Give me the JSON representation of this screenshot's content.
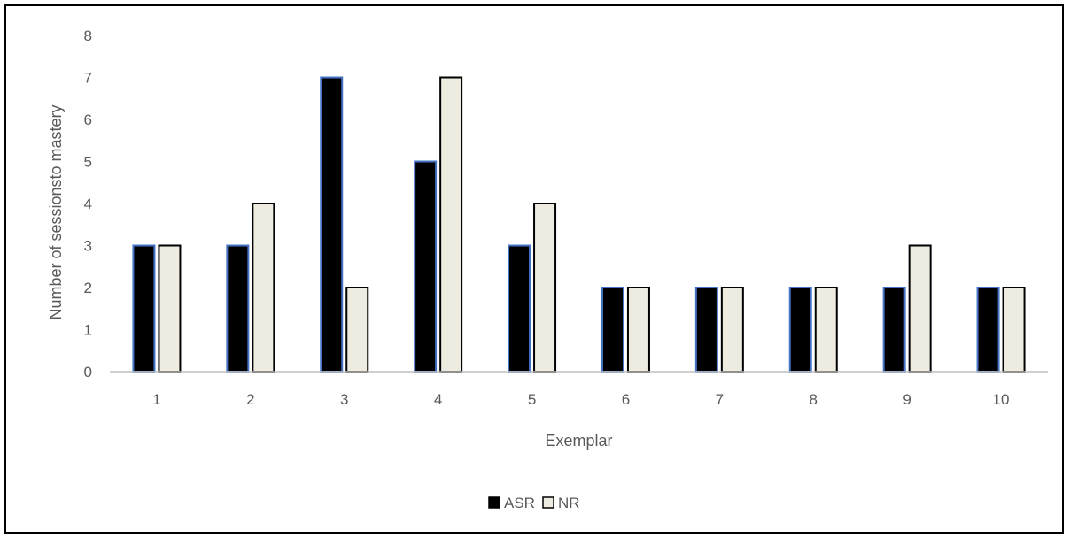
{
  "chart_data": {
    "type": "bar",
    "title": "",
    "xlabel": "Exemplar",
    "ylabel": "Number  of sessionsto mastery",
    "categories": [
      "1",
      "2",
      "3",
      "4",
      "5",
      "6",
      "7",
      "8",
      "9",
      "10"
    ],
    "ylim": [
      0,
      8
    ],
    "yticks": [
      "0",
      "1",
      "2",
      "3",
      "4",
      "5",
      "6",
      "7",
      "8"
    ],
    "grid": false,
    "legend_position": "bottom",
    "series": [
      {
        "name": "ASR",
        "values": [
          3,
          3,
          7,
          5,
          3,
          2,
          2,
          2,
          2,
          2
        ],
        "fill": "#000000",
        "edge": "#4472c4"
      },
      {
        "name": "NR",
        "values": [
          3,
          4,
          2,
          7,
          4,
          2,
          2,
          2,
          3,
          2
        ],
        "fill": "#eeece1",
        "edge": "#000000"
      }
    ],
    "axis_color": "#bfbfbf",
    "text_color": "#595959"
  }
}
